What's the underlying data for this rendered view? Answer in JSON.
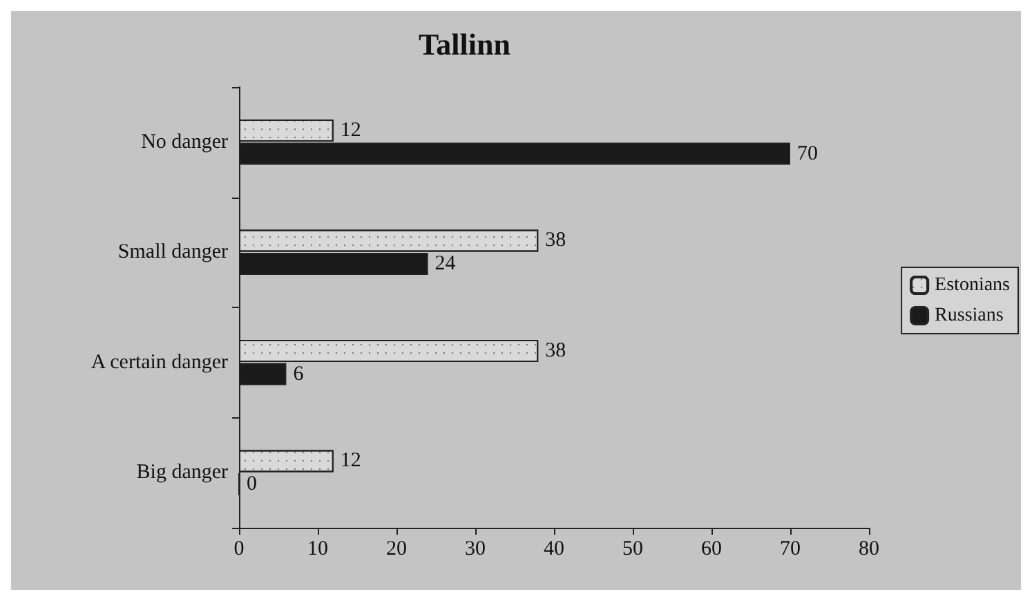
{
  "chart_data": {
    "type": "bar",
    "title": "Tallinn",
    "orientation": "horizontal",
    "categories": [
      "No danger",
      "Small danger",
      "A certain danger",
      "Big danger"
    ],
    "series": [
      {
        "name": "Estonians",
        "color": "#d9d9d9",
        "values": [
          12,
          38,
          38,
          12
        ]
      },
      {
        "name": "Russians",
        "color": "#1a1a1a",
        "values": [
          70,
          24,
          6,
          0
        ]
      }
    ],
    "xlim": [
      0,
      80
    ],
    "xticks": [
      0,
      10,
      20,
      30,
      40,
      50,
      60,
      70,
      80
    ],
    "data_labels": true,
    "legend": "right",
    "grid": false
  }
}
